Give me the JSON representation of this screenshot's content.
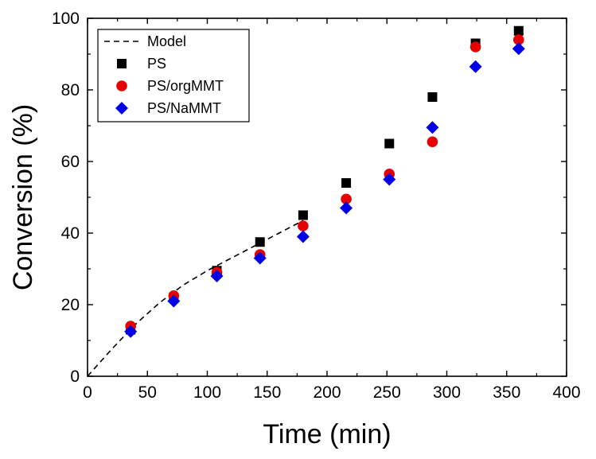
{
  "chart_data": {
    "type": "scatter",
    "title": "",
    "xlabel": "Time (min)",
    "ylabel": "Conversion (%)",
    "xlim": [
      0,
      400
    ],
    "ylim": [
      0,
      100
    ],
    "xticks": [
      0,
      50,
      100,
      150,
      200,
      250,
      300,
      350,
      400
    ],
    "yticks": [
      0,
      20,
      40,
      60,
      80,
      100
    ],
    "grid": false,
    "legend_position": "top-left",
    "series": [
      {
        "name": "Model",
        "kind": "line",
        "style": "dashed",
        "color": "#000000",
        "x": [
          0,
          20,
          40,
          60,
          80,
          100,
          120,
          140,
          160,
          180
        ],
        "y": [
          0,
          7.5,
          14.5,
          20.5,
          25.5,
          29.5,
          33.0,
          36.5,
          40.0,
          43.5
        ]
      },
      {
        "name": "PS",
        "kind": "scatter",
        "marker": "square",
        "color": "#000000",
        "x": [
          36,
          72,
          108,
          144,
          180,
          216,
          252,
          288,
          324,
          360
        ],
        "y": [
          13.0,
          22.0,
          29.5,
          37.5,
          45.0,
          54.0,
          65.0,
          78.0,
          93.0,
          96.5
        ]
      },
      {
        "name": "PS/orgMMT",
        "kind": "scatter",
        "marker": "circle",
        "color": "#e60000",
        "x": [
          36,
          72,
          108,
          144,
          180,
          216,
          252,
          288,
          324,
          360
        ],
        "y": [
          14.0,
          22.5,
          29.0,
          34.0,
          42.0,
          49.5,
          56.5,
          65.5,
          92.0,
          94.0
        ]
      },
      {
        "name": "PS/NaMMT",
        "kind": "scatter",
        "marker": "diamond",
        "color": "#0000e6",
        "x": [
          36,
          72,
          108,
          144,
          180,
          216,
          252,
          288,
          324,
          360
        ],
        "y": [
          12.5,
          21.0,
          28.0,
          33.0,
          39.0,
          47.0,
          55.0,
          69.5,
          86.5,
          91.5
        ]
      }
    ]
  }
}
